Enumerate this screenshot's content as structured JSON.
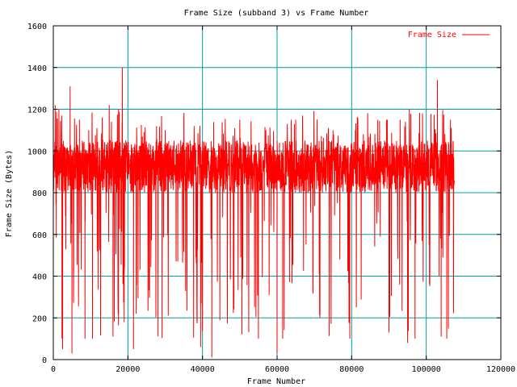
{
  "chart_data": {
    "type": "line",
    "title": "Frame Size (subband 3) vs Frame Number",
    "xlabel": "Frame Number",
    "ylabel": "Frame Size (Bytes)",
    "xlim": [
      0,
      120000
    ],
    "ylim": [
      0,
      1600
    ],
    "xticks": [
      0,
      20000,
      40000,
      60000,
      80000,
      100000,
      120000
    ],
    "xtick_labels": [
      "0",
      "20000",
      "40000",
      "60000",
      "80000",
      "100000",
      "120000"
    ],
    "yticks": [
      0,
      200,
      400,
      600,
      800,
      1000,
      1200,
      1400,
      1600
    ],
    "ytick_labels": [
      "0",
      "200",
      "400",
      "600",
      "800",
      "1000",
      "1200",
      "1400",
      "1600"
    ],
    "grid": true,
    "legend_position": "top-right",
    "series": [
      {
        "name": "Frame Size",
        "color": "#ff0000",
        "x_range": [
          0,
          107500
        ],
        "typical_band": [
          800,
          1050
        ],
        "notes_points": [
          [
            0,
            700
          ],
          [
            500,
            1220
          ],
          [
            1500,
            1200
          ],
          [
            2500,
            50
          ],
          [
            3500,
            1000
          ],
          [
            4500,
            1310
          ],
          [
            5000,
            30
          ],
          [
            7000,
            1150
          ],
          [
            8500,
            100
          ],
          [
            9500,
            1100
          ],
          [
            10500,
            100
          ],
          [
            12000,
            850
          ],
          [
            15000,
            1220
          ],
          [
            16000,
            110
          ],
          [
            17500,
            1200
          ],
          [
            18500,
            1400
          ],
          [
            19000,
            180
          ],
          [
            21500,
            50
          ],
          [
            22000,
            900
          ],
          [
            30000,
            1100
          ],
          [
            35000,
            1150
          ],
          [
            39500,
            60
          ],
          [
            40500,
            900
          ],
          [
            42500,
            10
          ],
          [
            43000,
            1000
          ],
          [
            50000,
            1150
          ],
          [
            55000,
            100
          ],
          [
            57000,
            1100
          ],
          [
            60000,
            30
          ],
          [
            61500,
            100
          ],
          [
            65000,
            1150
          ],
          [
            71500,
            200
          ],
          [
            75000,
            1100
          ],
          [
            79500,
            100
          ],
          [
            81000,
            1100
          ],
          [
            87000,
            1150
          ],
          [
            90000,
            130
          ],
          [
            93000,
            1150
          ],
          [
            95000,
            80
          ],
          [
            97000,
            100
          ],
          [
            99000,
            1180
          ],
          [
            103000,
            1340
          ],
          [
            104000,
            110
          ],
          [
            105500,
            100
          ],
          [
            106500,
            1150
          ],
          [
            107500,
            850
          ]
        ]
      }
    ]
  }
}
